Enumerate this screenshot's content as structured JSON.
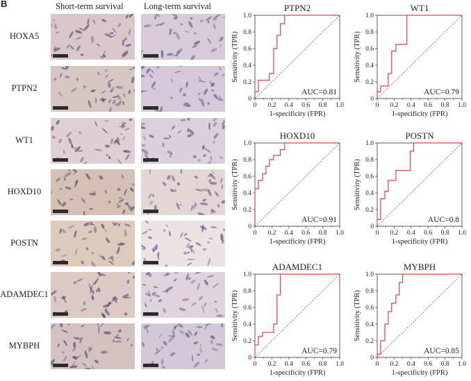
{
  "panel_letter": "B",
  "columns": [
    "Short-term survival",
    "Long-term survival"
  ],
  "rows": [
    "HOXA5",
    "PTPN2",
    "WT1",
    "HOXD10",
    "POSTN",
    "ADAMDEC1",
    "MYBPH"
  ],
  "tile_colors": {
    "short": [
      "#d9c7cc",
      "#d7c7c3",
      "#dfd0d5",
      "#d5c0b6",
      "#dccbbd",
      "#dac9c4",
      "#d4c2c2"
    ],
    "long": [
      "#d6cbd6",
      "#d5c8d8",
      "#dbd0dc",
      "#e2d7d4",
      "#ece4e4",
      "#e0d4dc",
      "#d3c8d6"
    ],
    "nuclei_short": "#5f4a6e",
    "nuclei_long": "#6a5a8a"
  },
  "colors": {
    "roc_line": "#e8413c",
    "diagonal": "#444444",
    "axis": "#333333"
  },
  "chart_data": [
    {
      "type": "line",
      "title": "PTPN2",
      "xlabel": "1-specificity (FPR)",
      "ylabel": "Sensitivity (TPR)",
      "xlim": [
        0,
        1
      ],
      "ylim": [
        0,
        1
      ],
      "ticks": [
        "0",
        "0.2",
        "0.4",
        "0.6",
        "0.8",
        "1.0"
      ],
      "xticks_minor": [
        0.1,
        0.3,
        0.5,
        0.7,
        0.9
      ],
      "annotation": "AUC=0.81",
      "x": [
        0,
        0,
        0.04,
        0.04,
        0.17,
        0.17,
        0.22,
        0.22,
        0.26,
        0.26,
        0.3,
        0.3,
        0.35,
        0.35,
        1.0
      ],
      "y": [
        0,
        0.08,
        0.08,
        0.22,
        0.22,
        0.3,
        0.3,
        0.6,
        0.6,
        0.76,
        0.76,
        0.9,
        0.9,
        1.0,
        1.0
      ]
    },
    {
      "type": "line",
      "title": "WT1",
      "xlabel": "1-specificity (FPR)",
      "ylabel": "Sensitivity (TPR)",
      "xlim": [
        0,
        1
      ],
      "ylim": [
        0,
        1
      ],
      "ticks": [
        "0",
        "0.2",
        "0.4",
        "0.6",
        "0.8",
        "1.0"
      ],
      "xticks_minor": [
        0.1,
        0.3,
        0.5,
        0.7,
        0.9
      ],
      "annotation": "AUC=0.79",
      "x": [
        0,
        0,
        0.04,
        0.04,
        0.13,
        0.13,
        0.17,
        0.17,
        0.22,
        0.22,
        0.35,
        0.35,
        1.0
      ],
      "y": [
        0,
        0.08,
        0.08,
        0.15,
        0.15,
        0.3,
        0.3,
        0.57,
        0.57,
        0.65,
        0.65,
        1.0,
        1.0
      ]
    },
    {
      "type": "line",
      "title": "HOXD10",
      "xlabel": "1-specificity (FPR)",
      "ylabel": "Sensitivity (TPR)",
      "xlim": [
        0,
        1
      ],
      "ylim": [
        0,
        1
      ],
      "ticks": [
        "0",
        "0.2",
        "0.4",
        "0.6",
        "0.8",
        "1.0"
      ],
      "xticks_minor": [
        0.1,
        0.3,
        0.5,
        0.7,
        0.9
      ],
      "annotation": "AUC=0.91",
      "x": [
        0,
        0,
        0.04,
        0.04,
        0.09,
        0.09,
        0.13,
        0.13,
        0.17,
        0.17,
        0.22,
        0.22,
        0.3,
        0.3,
        0.35,
        0.35,
        1.0
      ],
      "y": [
        0,
        0.45,
        0.45,
        0.55,
        0.55,
        0.63,
        0.63,
        0.72,
        0.72,
        0.8,
        0.8,
        0.85,
        0.85,
        0.92,
        0.92,
        1.0,
        1.0
      ]
    },
    {
      "type": "line",
      "title": "POSTN",
      "xlabel": "1-specificity (FPR)",
      "ylabel": "Sensitivity (TPR)",
      "xlim": [
        0,
        1
      ],
      "ylim": [
        0,
        1
      ],
      "ticks": [
        "0",
        "0.2",
        "0.4",
        "0.6",
        "0.8",
        "1.0"
      ],
      "xticks_minor": [
        0.1,
        0.3,
        0.5,
        0.7,
        0.9
      ],
      "annotation": "AUC=0.8",
      "x": [
        0,
        0,
        0.04,
        0.04,
        0.09,
        0.09,
        0.13,
        0.13,
        0.22,
        0.22,
        0.39,
        0.39,
        0.43,
        0.43,
        1.0
      ],
      "y": [
        0,
        0.08,
        0.08,
        0.33,
        0.33,
        0.42,
        0.42,
        0.55,
        0.55,
        0.67,
        0.67,
        0.9,
        0.9,
        1.0,
        1.0
      ]
    },
    {
      "type": "line",
      "title": "ADAMDEC1",
      "xlabel": "1-specificity (FPR)",
      "ylabel": "Sensitivity (TPR)",
      "xlim": [
        0,
        1
      ],
      "ylim": [
        0,
        1
      ],
      "ticks": [
        "0",
        "0.2",
        "0.4",
        "0.6",
        "0.8",
        "1.0"
      ],
      "xticks_minor": [
        0.1,
        0.3,
        0.5,
        0.7,
        0.9
      ],
      "annotation": "AUC=0.79",
      "x": [
        0,
        0,
        0.04,
        0.04,
        0.09,
        0.09,
        0.22,
        0.22,
        0.26,
        0.26,
        0.3,
        0.3,
        1.0
      ],
      "y": [
        0,
        0.15,
        0.15,
        0.25,
        0.25,
        0.3,
        0.3,
        0.4,
        0.4,
        0.75,
        0.75,
        1.0,
        1.0
      ]
    },
    {
      "type": "line",
      "title": "MYBPH",
      "xlabel": "1-specificity (FPR)",
      "ylabel": "Sensitivity (TPR)",
      "xlim": [
        0,
        1
      ],
      "ylim": [
        0,
        1
      ],
      "ticks": [
        "0",
        "0.2",
        "0.4",
        "0.6",
        "0.8",
        "1.0"
      ],
      "xticks_minor": [
        0.1,
        0.3,
        0.5,
        0.7,
        0.9
      ],
      "annotation": "AUC=0.85",
      "x": [
        0,
        0,
        0.04,
        0.04,
        0.09,
        0.09,
        0.13,
        0.13,
        0.17,
        0.17,
        0.22,
        0.22,
        0.26,
        0.26,
        0.3,
        0.3,
        1.0
      ],
      "y": [
        0,
        0.04,
        0.04,
        0.2,
        0.2,
        0.4,
        0.4,
        0.55,
        0.55,
        0.65,
        0.65,
        0.75,
        0.75,
        0.9,
        0.9,
        1.0,
        1.0
      ]
    }
  ]
}
